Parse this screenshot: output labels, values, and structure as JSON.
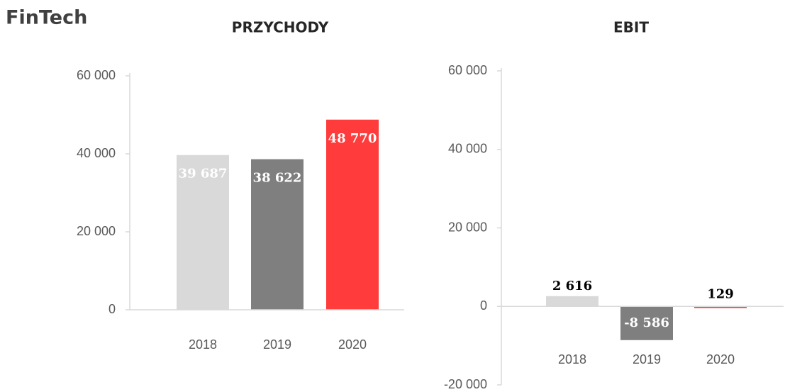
{
  "header": {
    "title": "FinTech"
  },
  "chart_data": [
    {
      "type": "bar",
      "title": "PRZYCHODY",
      "categories": [
        "2018",
        "2019",
        "2020"
      ],
      "values": [
        39687,
        38622,
        48770
      ],
      "value_labels": [
        "39 687",
        "38 622",
        "48 770"
      ],
      "colors": [
        "#d9d9d9",
        "#7f7f7f",
        "#ff3b3b"
      ],
      "ylim": [
        0,
        60000
      ],
      "yticks": [
        0,
        {
          "value": 20000,
          "label": "20 000"
        },
        {
          "value": 40000,
          "label": "40 000"
        },
        {
          "value": 60000,
          "label": "60 000"
        }
      ]
    },
    {
      "type": "bar",
      "title": "EBIT",
      "categories": [
        "2018",
        "2019",
        "2020"
      ],
      "values": [
        2616,
        -8586,
        129
      ],
      "value_labels": [
        "2 616",
        "-8 586",
        "129"
      ],
      "colors": [
        "#d9d9d9",
        "#7f7f7f",
        "#ff3b3b"
      ],
      "ylim": [
        -20000,
        60000
      ],
      "yticks": [
        {
          "value": -20000,
          "label": "-20 000"
        },
        0,
        {
          "value": 20000,
          "label": "20 000"
        },
        {
          "value": 40000,
          "label": "40 000"
        },
        {
          "value": 60000,
          "label": "60 000"
        }
      ]
    }
  ]
}
